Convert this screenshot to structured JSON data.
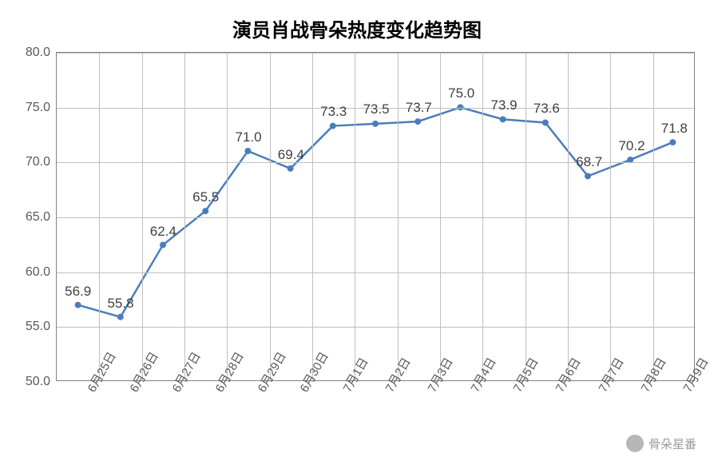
{
  "chart": {
    "type": "line",
    "title": "演员肖战骨朵热度变化趋势图",
    "title_fontsize": 24,
    "background_color": "#ffffff",
    "border_color": "#808080",
    "grid_color": "#bfbfbf",
    "axis_label_color": "#595959",
    "axis_label_fontsize": 16,
    "x": {
      "labels": [
        "6月25日",
        "6月26日",
        "6月27日",
        "6月28日",
        "6月29日",
        "6月30日",
        "7月1日",
        "7月2日",
        "7月3日",
        "7月4日",
        "7月5日",
        "7月6日",
        "7月7日",
        "7月8日",
        "7月9日"
      ],
      "rotation_deg": -60
    },
    "y": {
      "min": 50.0,
      "max": 80.0,
      "tick_step": 5.0,
      "ticks": [
        50.0,
        55.0,
        60.0,
        65.0,
        70.0,
        75.0,
        80.0
      ]
    },
    "series": {
      "values": [
        56.9,
        55.8,
        62.4,
        65.5,
        71.0,
        69.4,
        73.3,
        73.5,
        73.7,
        75.0,
        73.9,
        73.6,
        68.7,
        70.2,
        71.8
      ],
      "line_color": "#4a7ebb",
      "line_width": 2.5,
      "marker_color": "#4a7ebb",
      "marker_radius": 4,
      "data_label_color": "#404040",
      "data_label_fontsize": 17
    }
  },
  "watermark": {
    "text": "骨朵星番",
    "icon_name": "wechat-icon"
  }
}
